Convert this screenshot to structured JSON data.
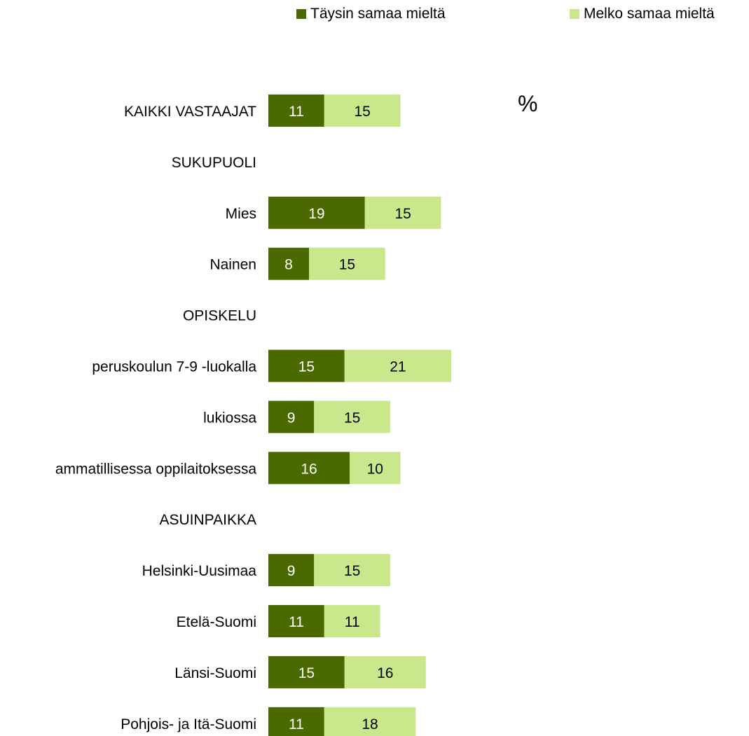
{
  "chart_data": {
    "type": "bar",
    "orientation": "horizontal",
    "stacked": true,
    "unit_label": "%",
    "legend_position": "top",
    "grid": false,
    "series": [
      {
        "name": "Täysin samaa mieltä",
        "color": "#4a6a00",
        "values": [
          11,
          null,
          19,
          8,
          null,
          15,
          9,
          16,
          null,
          9,
          11,
          15,
          11
        ]
      },
      {
        "name": "Melko samaa mieltä",
        "color": "#c9e88c",
        "values": [
          15,
          null,
          15,
          15,
          null,
          21,
          15,
          10,
          null,
          15,
          11,
          16,
          18
        ]
      }
    ],
    "categories": [
      "KAIKKI VASTAAJAT",
      "SUKUPUOLI",
      "Mies",
      "Nainen",
      "OPISKELU",
      "peruskoulun 7-9 -luokalla",
      "lukiossa",
      "ammatillisessa oppilaitoksessa",
      "ASUINPAIKKA",
      "Helsinki-Uusimaa",
      "Etelä-Suomi",
      "Länsi-Suomi",
      "Pohjois- ja Itä-Suomi"
    ]
  }
}
